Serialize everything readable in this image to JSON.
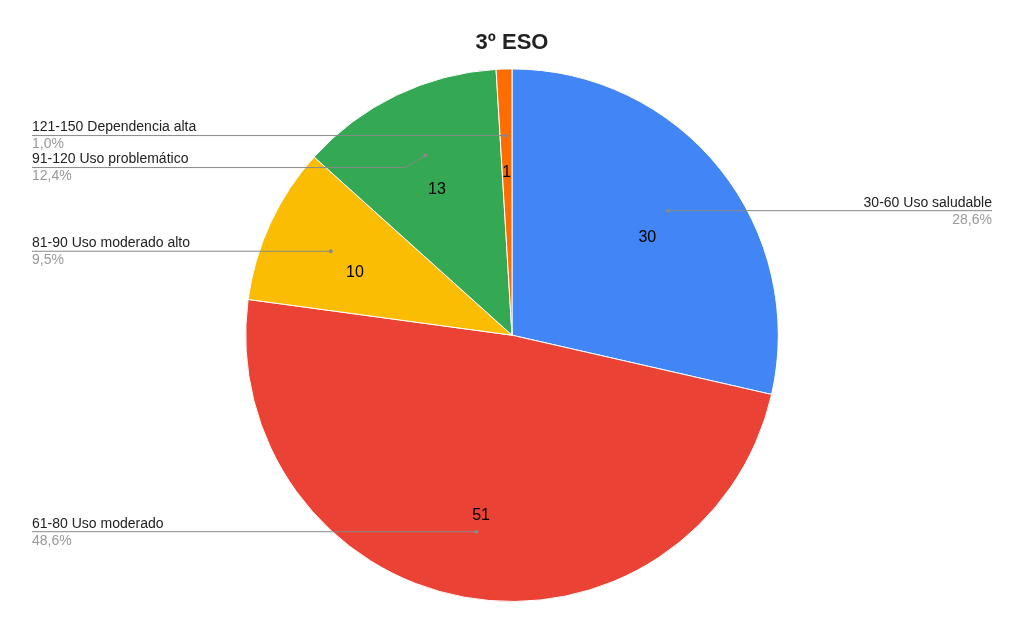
{
  "chart_data": {
    "type": "pie",
    "title": "3º ESO",
    "categories": [
      "30-60 Uso saludable",
      "61-80 Uso moderado",
      "81-90 Uso moderado alto",
      "91-120 Uso problemático",
      "121-150 Dependencia alta"
    ],
    "values": [
      30,
      51,
      10,
      13,
      1
    ],
    "colors": [
      "#4285f4",
      "#ea4335",
      "#fbbc04",
      "#34a853",
      "#ff6d01"
    ],
    "annotations": [
      "28,6%",
      "48,6%",
      "9,5%",
      "12,4%",
      "1,0%"
    ],
    "data_labels": true,
    "legend": false
  }
}
